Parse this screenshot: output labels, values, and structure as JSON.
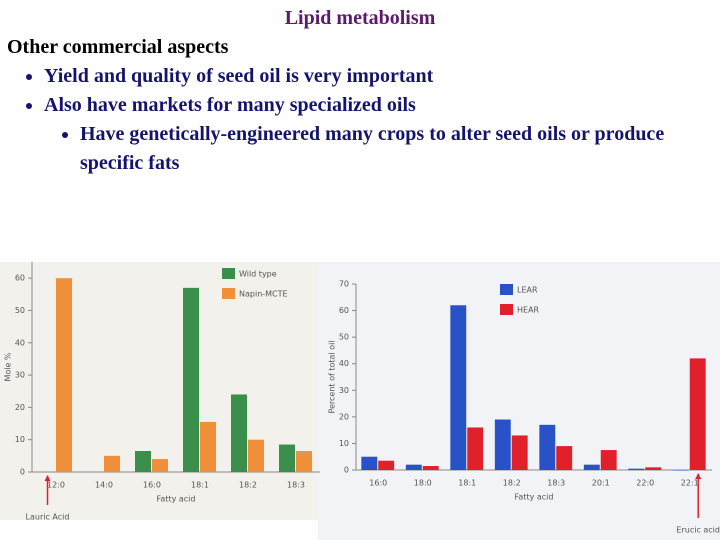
{
  "slide": {
    "title": "Lipid metabolism",
    "heading": "Other commercial aspects",
    "bullets": [
      "Yield and quality of seed oil is very important",
      "Also have markets for many specialized oils"
    ],
    "sub_bullets": [
      "Have genetically-engineered many crops to alter seed oils or produce specific fats"
    ]
  },
  "chart_data": [
    {
      "type": "bar",
      "x_label": "Fatty acid",
      "y_label": "Mole %",
      "annotation": "Lauric Acid",
      "categories": [
        "12:0",
        "14:0",
        "16:0",
        "18:1",
        "18:2",
        "18:3"
      ],
      "series": [
        {
          "name": "Wild type",
          "color": "#3a8f4a",
          "values": [
            null,
            null,
            6.5,
            57,
            24,
            8.5
          ]
        },
        {
          "name": "Napin-MCTE",
          "color": "#f0903a",
          "values": [
            60,
            5,
            4,
            15.5,
            10,
            6.5
          ]
        }
      ],
      "ylim": [
        0,
        65
      ],
      "yticks": [
        0,
        10,
        20,
        30,
        40,
        50,
        60
      ]
    },
    {
      "type": "bar",
      "x_label": "Fatty acid",
      "y_label": "Percent of total oil",
      "annotation": "Erucic acid",
      "categories": [
        "16:0",
        "18:0",
        "18:1",
        "18:2",
        "18:3",
        "20:1",
        "22:0",
        "22:1"
      ],
      "series": [
        {
          "name": "LEAR",
          "color": "#2a52c8",
          "values": [
            5,
            2,
            62,
            19,
            17,
            2,
            0.5,
            0
          ]
        },
        {
          "name": "HEAR",
          "color": "#e0202a",
          "values": [
            3.5,
            1.5,
            16,
            13,
            9,
            7.5,
            1,
            42
          ]
        }
      ],
      "ylim": [
        0,
        70
      ],
      "yticks": [
        0,
        10,
        20,
        30,
        40,
        50,
        60,
        70
      ]
    }
  ]
}
